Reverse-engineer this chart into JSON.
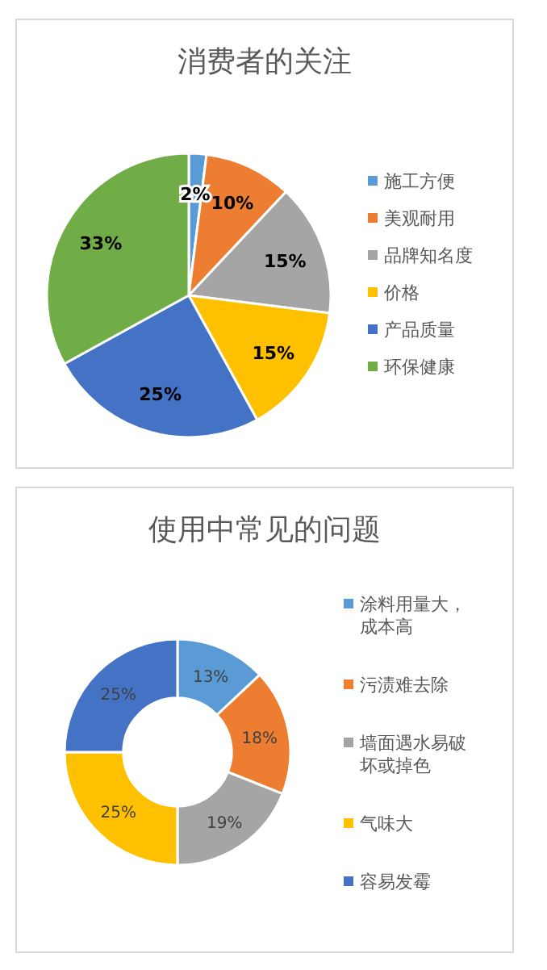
{
  "chart_data": [
    {
      "type": "pie",
      "title": "消费者的关注",
      "categories": [
        "施工方便",
        "美观耐用",
        "品牌知名度",
        "价格",
        "产品质量",
        "环保健康"
      ],
      "values": [
        2,
        10,
        15,
        15,
        25,
        33
      ],
      "colors": [
        "#5b9bd5",
        "#ed7d31",
        "#a5a5a5",
        "#ffc000",
        "#4472c4",
        "#70ad47"
      ],
      "value_labels": [
        "2%",
        "10%",
        "15%",
        "15%",
        "25%",
        "33%"
      ],
      "legend": "right"
    },
    {
      "type": "donut",
      "title": "使用中常见的问题",
      "categories": [
        "涂料用量大，成本高",
        "污渍难去除",
        "墙面遇水易破坏或掉色",
        "气味大",
        "容易发霉"
      ],
      "values": [
        13,
        18,
        19,
        25,
        25
      ],
      "colors": [
        "#5b9bd5",
        "#ed7d31",
        "#a5a5a5",
        "#ffc000",
        "#4472c4"
      ],
      "value_labels": [
        "13%",
        "18%",
        "19%",
        "25%",
        "25%"
      ],
      "legend": "right"
    }
  ]
}
